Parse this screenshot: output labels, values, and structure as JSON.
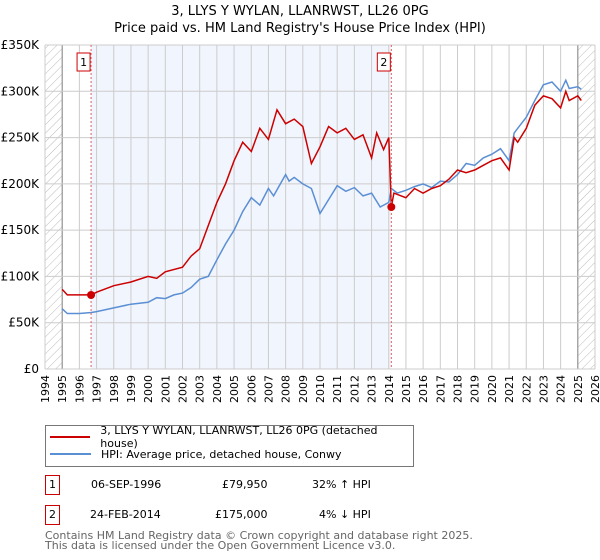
{
  "title": "3, LLYS Y WYLAN, LLANRWST, LL26 0PG",
  "subtitle": "Price paid vs. HM Land Registry's House Price Index (HPI)",
  "chart_data": {
    "type": "line",
    "title": "3, LLYS Y WYLAN, LLANRWST, LL26 0PG",
    "subtitle": "Price paid vs. HM Land Registry's House Price Index (HPI)",
    "xlim": [
      1994,
      2026
    ],
    "ylim": [
      0,
      350000
    ],
    "x_ticks": [
      "1994",
      "1995",
      "1996",
      "1997",
      "1998",
      "1999",
      "2000",
      "2001",
      "2002",
      "2003",
      "2004",
      "2005",
      "2006",
      "2007",
      "2008",
      "2009",
      "2010",
      "2011",
      "2012",
      "2013",
      "2014",
      "2015",
      "2016",
      "2017",
      "2018",
      "2019",
      "2020",
      "2021",
      "2022",
      "2023",
      "2024",
      "2025",
      "2026"
    ],
    "y_ticks": [
      {
        "v": 0,
        "label": "£0"
      },
      {
        "v": 50000,
        "label": "£50K"
      },
      {
        "v": 100000,
        "label": "£100K"
      },
      {
        "v": 150000,
        "label": "£150K"
      },
      {
        "v": 200000,
        "label": "£200K"
      },
      {
        "v": 250000,
        "label": "£250K"
      },
      {
        "v": 300000,
        "label": "£300K"
      },
      {
        "v": 350000,
        "label": "£350K"
      }
    ],
    "grid": true,
    "series": [
      {
        "name": "3, LLYS Y WYLAN, LLANRWST, LL26 0PG (detached house)",
        "color": "#cc0000",
        "x": [
          1995,
          1995.3,
          1996.7,
          1997,
          1998,
          1999,
          2000,
          2000.5,
          2001,
          2002,
          2002.5,
          2003,
          2003.5,
          2004,
          2004.5,
          2005,
          2005.5,
          2006,
          2006.5,
          2007,
          2007.5,
          2008,
          2008.5,
          2009,
          2009.5,
          2010,
          2010.5,
          2011,
          2011.5,
          2012,
          2012.5,
          2013,
          2013.3,
          2013.7,
          2014,
          2014.15,
          2014.3,
          2015,
          2015.5,
          2016,
          2016.5,
          2017,
          2017.5,
          2018,
          2018.5,
          2019,
          2019.5,
          2020,
          2020.5,
          2021,
          2021.3,
          2021.5,
          2022,
          2022.5,
          2023,
          2023.5,
          2024,
          2024.3,
          2024.5,
          2025,
          2025.2
        ],
        "y": [
          86000,
          80000,
          80000,
          83000,
          90000,
          94000,
          100000,
          98000,
          105000,
          110000,
          122000,
          130000,
          155000,
          180000,
          200000,
          225000,
          245000,
          235000,
          260000,
          248000,
          280000,
          265000,
          270000,
          262000,
          222000,
          240000,
          262000,
          255000,
          260000,
          248000,
          253000,
          228000,
          255000,
          237000,
          250000,
          175000,
          190000,
          185000,
          195000,
          190000,
          195000,
          198000,
          205000,
          215000,
          212000,
          215000,
          220000,
          225000,
          228000,
          215000,
          250000,
          245000,
          260000,
          285000,
          295000,
          292000,
          282000,
          300000,
          290000,
          295000,
          290000
        ]
      },
      {
        "name": "HPI: Average price, detached house, Conwy",
        "color": "#5b8fd4",
        "x": [
          1995,
          1995.3,
          1996,
          1996.7,
          1997,
          1998,
          1999,
          2000,
          2000.5,
          2001,
          2001.5,
          2002,
          2002.5,
          2003,
          2003.5,
          2004,
          2004.5,
          2005,
          2005.5,
          2006,
          2006.5,
          2007,
          2007.3,
          2008,
          2008.2,
          2008.5,
          2009,
          2009.5,
          2010,
          2010.5,
          2011,
          2011.5,
          2012,
          2012.5,
          2013,
          2013.5,
          2014,
          2014.15,
          2014.5,
          2015,
          2015.5,
          2016,
          2016.5,
          2017,
          2017.5,
          2018,
          2018.5,
          2019,
          2019.5,
          2020,
          2020.5,
          2021,
          2021.3,
          2021.5,
          2022,
          2022.5,
          2023,
          2023.5,
          2024,
          2024.3,
          2024.5,
          2025,
          2025.2
        ],
        "y": [
          65000,
          60000,
          60000,
          61000,
          62000,
          66000,
          70000,
          72000,
          77000,
          76000,
          80000,
          82000,
          88000,
          97000,
          100000,
          118000,
          135000,
          150000,
          170000,
          185000,
          177000,
          195000,
          187000,
          210000,
          203000,
          207000,
          200000,
          195000,
          168000,
          183000,
          198000,
          192000,
          196000,
          187000,
          190000,
          175000,
          180000,
          195000,
          190000,
          193000,
          197000,
          200000,
          196000,
          203000,
          202000,
          210000,
          222000,
          220000,
          228000,
          232000,
          238000,
          225000,
          255000,
          260000,
          272000,
          290000,
          307000,
          310000,
          300000,
          312000,
          303000,
          305000,
          302000
        ]
      }
    ],
    "annotations": [
      {
        "label": "1",
        "x": 1996.68,
        "y": 79950,
        "date": "06-SEP-1996",
        "price": "£79,950",
        "hpi": "32% ↑ HPI"
      },
      {
        "label": "2",
        "x": 2014.15,
        "y": 175000,
        "date": "24-FEB-2014",
        "price": "£175,000",
        "hpi": "4% ↓ HPI"
      }
    ],
    "legend_placement": "below"
  },
  "footer": {
    "line1": "Contains HM Land Registry data © Crown copyright and database right 2025.",
    "line2": "This data is licensed under the Open Government Licence v3.0."
  }
}
